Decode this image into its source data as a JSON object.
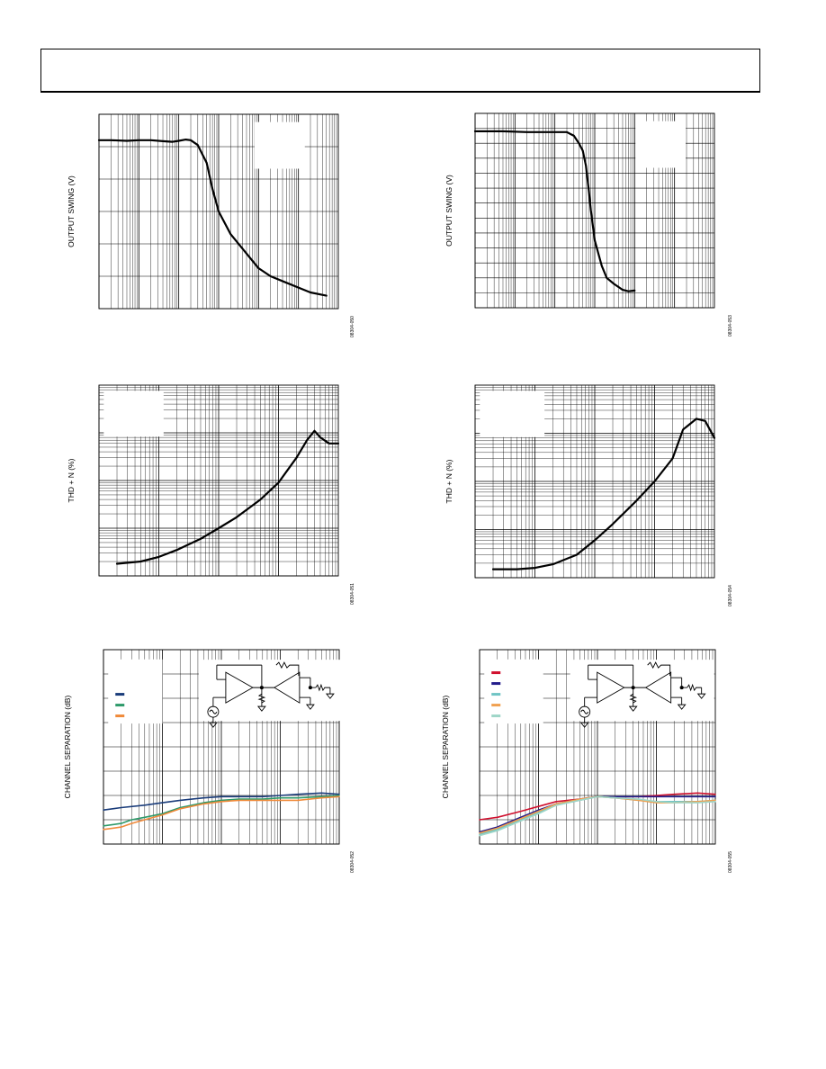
{
  "page": {
    "header_text": ""
  },
  "chart_data": [
    {
      "id": "swing-a",
      "type": "line",
      "title": "",
      "ylabel": "OUTPUT SWING (V)",
      "figure_id": "08304-050",
      "x_scale": "log",
      "xlim": [
        10,
        10000000
      ],
      "ylim": [
        0,
        6
      ],
      "grid": true,
      "yticks": [
        0,
        1,
        2,
        3,
        4,
        5,
        6
      ],
      "legend_box": true,
      "legend_box_pos": [
        0.65,
        0.96,
        0.86,
        0.72
      ],
      "series": [
        {
          "color": "#000000",
          "width": 2.2,
          "x": [
            10,
            20,
            50,
            100,
            200,
            400,
            700,
            1000,
            1500,
            2000,
            3000,
            5000,
            7000,
            10000,
            20000,
            50000,
            100000,
            200000,
            500000,
            1000000,
            2000000,
            5000000
          ],
          "y": [
            5.2,
            5.2,
            5.18,
            5.2,
            5.2,
            5.17,
            5.15,
            5.18,
            5.22,
            5.2,
            5.05,
            4.5,
            3.7,
            3.0,
            2.3,
            1.7,
            1.25,
            1.0,
            0.8,
            0.65,
            0.5,
            0.4
          ]
        }
      ]
    },
    {
      "id": "swing-b",
      "type": "line",
      "title": "",
      "ylabel": "OUTPUT SWING (V)",
      "figure_id": "08304-053",
      "x_scale": "log",
      "xlim": [
        10,
        10000000
      ],
      "ylim": [
        0,
        13
      ],
      "grid": true,
      "yticks": [
        0,
        1,
        2,
        3,
        4,
        5,
        6,
        7,
        8,
        9,
        10,
        11,
        12,
        13
      ],
      "legend_box": true,
      "legend_box_pos": [
        0.67,
        0.96,
        0.88,
        0.72
      ],
      "series": [
        {
          "color": "#000000",
          "width": 2.2,
          "x": [
            10,
            50,
            200,
            800,
            2000,
            3000,
            4000,
            5000,
            6000,
            7000,
            8000,
            10000,
            15000,
            20000,
            30000,
            50000,
            70000,
            100000
          ],
          "y": [
            11.8,
            11.8,
            11.75,
            11.75,
            11.75,
            11.5,
            11.0,
            10.5,
            9.5,
            8.0,
            6.5,
            4.5,
            2.8,
            2.0,
            1.6,
            1.2,
            1.1,
            1.15
          ]
        }
      ]
    },
    {
      "id": "thd-a",
      "type": "line",
      "title": "",
      "ylabel": "THD + N (%)",
      "figure_id": "08304-051",
      "x_scale": "log",
      "y_scale": "log",
      "xlim": [
        10,
        100000
      ],
      "ylim": [
        0.0001,
        1
      ],
      "grid": true,
      "legend_box": true,
      "legend_box_pos": [
        0.02,
        0.97,
        0.27,
        0.73
      ],
      "series": [
        {
          "color": "#000000",
          "width": 2.2,
          "x": [
            20,
            50,
            100,
            200,
            500,
            1000,
            2000,
            5000,
            10000,
            20000,
            30000,
            40000,
            50000,
            70000,
            100000
          ],
          "y": [
            0.00018,
            0.0002,
            0.00025,
            0.00035,
            0.0006,
            0.001,
            0.0017,
            0.004,
            0.009,
            0.03,
            0.07,
            0.11,
            0.08,
            0.06,
            0.06
          ]
        }
      ]
    },
    {
      "id": "thd-b",
      "type": "line",
      "title": "",
      "ylabel": "THD + N (%)",
      "figure_id": "08304-054",
      "x_scale": "log",
      "y_scale": "log",
      "xlim": [
        10,
        100000
      ],
      "ylim": [
        0.0001,
        1
      ],
      "grid": true,
      "legend_box": true,
      "legend_box_pos": [
        0.02,
        0.97,
        0.29,
        0.73
      ],
      "series": [
        {
          "color": "#000000",
          "width": 2.2,
          "x": [
            20,
            50,
            100,
            200,
            500,
            1000,
            2000,
            5000,
            10000,
            20000,
            30000,
            50000,
            70000,
            100000
          ],
          "y": [
            0.00015,
            0.00015,
            0.00016,
            0.00019,
            0.0003,
            0.0006,
            0.0013,
            0.004,
            0.01,
            0.03,
            0.12,
            0.2,
            0.18,
            0.08
          ]
        }
      ]
    },
    {
      "id": "cs-a",
      "type": "line",
      "title": "",
      "ylabel": "CHANNEL SEPARATION (dB)",
      "figure_id": "08304-052",
      "x_scale": "log",
      "xlim": [
        10,
        100000
      ],
      "ylim": [
        -160,
        0
      ],
      "grid": true,
      "yticks": [
        -160,
        -140,
        -120,
        -100,
        -80,
        -60,
        -40,
        -20,
        0
      ],
      "legend_box": true,
      "legend_box_pos": [
        0.02,
        0.95,
        0.25,
        0.62
      ],
      "legend_swatches": [
        "#1a3c7a",
        "#2e9a6a",
        "#f08a3a"
      ],
      "legend_labels": [
        "",
        "",
        ""
      ],
      "schematic": "follower",
      "series": [
        {
          "color": "#1a3c7a",
          "width": 1.6,
          "x": [
            10,
            20,
            50,
            100,
            200,
            500,
            1000,
            2000,
            5000,
            10000,
            20000,
            50000,
            100000
          ],
          "y": [
            -132,
            -130,
            -128,
            -126,
            -124,
            -122,
            -121,
            -121,
            -121,
            -120,
            -119,
            -118,
            -119
          ]
        },
        {
          "color": "#2e9a6a",
          "width": 1.6,
          "x": [
            10,
            20,
            30,
            50,
            100,
            200,
            500,
            1000,
            2000,
            5000,
            10000,
            20000,
            50000,
            100000
          ],
          "y": [
            -145,
            -143,
            -140,
            -138,
            -135,
            -130,
            -126,
            -124,
            -123,
            -123,
            -122,
            -122,
            -121,
            -120
          ]
        },
        {
          "color": "#f08a3a",
          "width": 1.6,
          "x": [
            10,
            20,
            30,
            50,
            100,
            200,
            500,
            1000,
            2000,
            5000,
            10000,
            20000,
            50000,
            100000
          ],
          "y": [
            -148,
            -146,
            -143,
            -140,
            -136,
            -131,
            -127,
            -125,
            -124,
            -124,
            -124,
            -124,
            -122,
            -121
          ]
        }
      ]
    },
    {
      "id": "cs-b",
      "type": "line",
      "title": "",
      "ylabel": "CHANNEL SEPARATION (dB)",
      "figure_id": "08304-055",
      "x_scale": "log",
      "xlim": [
        10,
        100000
      ],
      "ylim": [
        -160,
        0
      ],
      "grid": true,
      "yticks": [
        -160,
        -140,
        -120,
        -100,
        -80,
        -60,
        -40,
        -20,
        0
      ],
      "legend_box": true,
      "legend_box_pos": [
        0.02,
        0.95,
        0.27,
        0.62
      ],
      "legend_swatches": [
        "#d0102e",
        "#221b8a",
        "#6fc4c4",
        "#f0a050",
        "#9fd6c8"
      ],
      "legend_labels": [
        "",
        "",
        "",
        "",
        ""
      ],
      "schematic": "inverting",
      "series": [
        {
          "color": "#d0102e",
          "width": 1.6,
          "x": [
            10,
            20,
            50,
            100,
            200,
            500,
            1000,
            2000,
            5000,
            10000,
            20000,
            50000,
            100000
          ],
          "y": [
            -140,
            -138,
            -133,
            -129,
            -125,
            -123,
            -121,
            -121,
            -121,
            -120,
            -119,
            -118,
            -119
          ]
        },
        {
          "color": "#221b8a",
          "width": 1.6,
          "x": [
            10,
            20,
            50,
            100,
            200,
            500,
            1000,
            2000,
            5000,
            10000,
            20000,
            50000,
            100000
          ],
          "y": [
            -150,
            -146,
            -138,
            -132,
            -127,
            -123,
            -121,
            -121,
            -121,
            -121,
            -121,
            -121,
            -121
          ]
        },
        {
          "color": "#6fc4c4",
          "width": 1.6,
          "x": [
            10,
            20,
            50,
            100,
            200,
            500,
            1000,
            2000,
            5000,
            10000,
            20000,
            50000,
            100000
          ],
          "y": [
            -152,
            -148,
            -140,
            -134,
            -128,
            -124,
            -121,
            -122,
            -124,
            -125,
            -125,
            -125,
            -124
          ]
        },
        {
          "color": "#f0a050",
          "width": 1.6,
          "x": [
            10,
            20,
            50,
            100,
            200,
            500,
            1000,
            2000,
            5000,
            10000,
            20000,
            50000,
            100000
          ],
          "y": [
            -151,
            -147,
            -139,
            -133,
            -127,
            -123,
            -121,
            -122,
            -124,
            -126,
            -126,
            -125,
            -124
          ]
        },
        {
          "color": "#9fd6c8",
          "width": 1.6,
          "x": [
            10,
            20,
            50,
            100,
            200,
            500,
            1000,
            2000,
            5000,
            10000,
            20000,
            50000,
            100000
          ],
          "y": [
            -153,
            -149,
            -141,
            -135,
            -128,
            -124,
            -121,
            -122,
            -123,
            -125,
            -126,
            -126,
            -125
          ]
        }
      ]
    }
  ]
}
